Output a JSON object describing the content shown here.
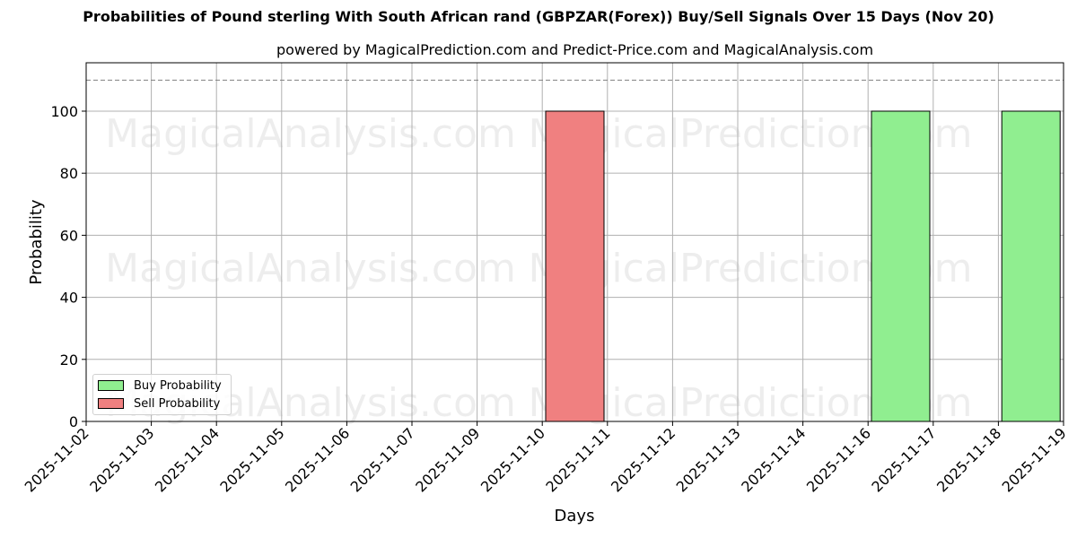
{
  "title": "Probabilities of Pound sterling With South African rand (GBPZAR(Forex)) Buy/Sell Signals Over 15 Days (Nov 20)",
  "subtitle": "powered by MagicalPrediction.com and Predict-Price.com and MagicalAnalysis.com",
  "watermarks": [
    "MagicalAnalysis.com",
    "MagicalPrediction.com"
  ],
  "legend": {
    "buy_label": "Buy Probability",
    "sell_label": "Sell Probability"
  },
  "colors": {
    "buy": "#90ee90",
    "sell": "#f08080",
    "grid": "#b0b0b0",
    "threshold": "#808080"
  },
  "chart_data": {
    "type": "bar",
    "title": "Probabilities of Pound sterling With South African rand (GBPZAR(Forex)) Buy/Sell Signals Over 15 Days (Nov 20)",
    "subtitle": "powered by MagicalPrediction.com and Predict-Price.com and MagicalAnalysis.com",
    "xlabel": "Days",
    "ylabel": "Probability",
    "ylim": [
      0,
      115.6
    ],
    "yticks": [
      0,
      20,
      40,
      60,
      80,
      100
    ],
    "categories": [
      "2025-11-02",
      "2025-11-03",
      "2025-11-04",
      "2025-11-05",
      "2025-11-06",
      "2025-11-07",
      "2025-11-09",
      "2025-11-10",
      "2025-11-11",
      "2025-11-12",
      "2025-11-13",
      "2025-11-14",
      "2025-11-16",
      "2025-11-17",
      "2025-11-18",
      "2025-11-19"
    ],
    "series": [
      {
        "name": "Buy Probability",
        "color": "#90ee90",
        "values": [
          0,
          0,
          0,
          0,
          0,
          0,
          0,
          0,
          0,
          0,
          0,
          0,
          100,
          0,
          100,
          0
        ]
      },
      {
        "name": "Sell Probability",
        "color": "#f08080",
        "values": [
          0,
          0,
          0,
          0,
          0,
          0,
          0,
          100,
          0,
          0,
          0,
          0,
          0,
          0,
          0,
          0
        ]
      }
    ],
    "threshold_line": {
      "y": 110,
      "style": "dashed"
    },
    "grid": true,
    "legend_position": "lower left"
  }
}
